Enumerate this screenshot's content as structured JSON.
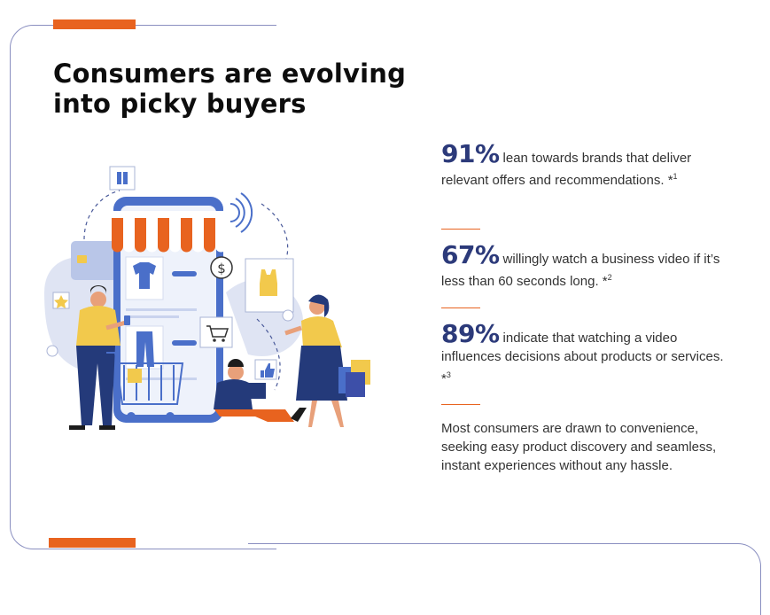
{
  "title": "Consumers are evolving into picky buyers",
  "stats": [
    {
      "value": "91%",
      "text": "lean towards brands that deliver relevant offers and recommendations. *",
      "ref": "1"
    },
    {
      "value": "67%",
      "text": "willingly watch a business video if it’s less than 60 seconds long. *",
      "ref": "2"
    },
    {
      "value": "89%",
      "text": "indicate that watching a video influences decisions about products or services. *",
      "ref": "3"
    }
  ],
  "summary": "Most consumers are drawn to convenience, seeking easy product discovery and seamless, instant experiences without any hassle.",
  "colors": {
    "accent": "#e8631f",
    "stat_blue": "#2c3a7a",
    "frame": "#8a8fc0"
  },
  "icons": [
    "gift-icon",
    "credit-card-icon",
    "star-icon",
    "heart-icon",
    "dollar-icon",
    "shopping-cart-icon",
    "thumbs-up-icon",
    "wifi-icon"
  ]
}
